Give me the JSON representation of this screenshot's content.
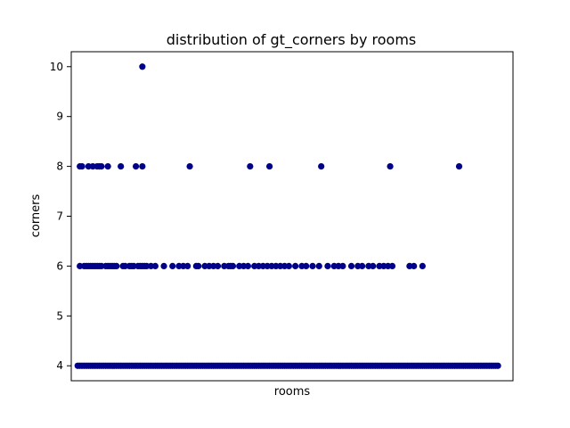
{
  "chart_data": {
    "type": "scatter",
    "title": "distribution of gt_corners by rooms",
    "xlabel": "rooms",
    "ylabel": "corners",
    "ylim": [
      3.7,
      10.3
    ],
    "yticks": [
      4,
      5,
      6,
      7,
      8,
      9,
      10
    ],
    "grid": false,
    "legend": "none",
    "marker_color": "#00008b",
    "points": {
      "y10": [
        15
      ],
      "y8": [
        0.5,
        1,
        2.5,
        3.5,
        4.5,
        5,
        5.5,
        7,
        10,
        13.5,
        15,
        26,
        40,
        44.5,
        56.5,
        72.5,
        88.5
      ],
      "y6": [
        0.5,
        1.5,
        2,
        2.5,
        3,
        3.5,
        4,
        4.5,
        5,
        5.5,
        6.5,
        7,
        7.5,
        8,
        8.5,
        9,
        10.5,
        11,
        12,
        12.5,
        13,
        14,
        14.5,
        15,
        15.5,
        16,
        17,
        18,
        20,
        22,
        23.5,
        24.5,
        25.5,
        27.5,
        28,
        29.5,
        30.5,
        31.5,
        32.5,
        34,
        35,
        35.5,
        36,
        37.5,
        38.5,
        39.5,
        41,
        42,
        43,
        44,
        45,
        46,
        47,
        48,
        49,
        50.5,
        52,
        53,
        54.5,
        56,
        58,
        59.5,
        60.5,
        61.5,
        63.5,
        65,
        66,
        67.5,
        68.5,
        70,
        71,
        72,
        73,
        77,
        78,
        80
      ],
      "y4": [
        0,
        0.5,
        1,
        1.5,
        2,
        2.5,
        3,
        3.5,
        4,
        4.5,
        5,
        5.5,
        6,
        6.5,
        7,
        7.5,
        8,
        8.5,
        9,
        9.5,
        10,
        10.5,
        11,
        11.5,
        12,
        12.5,
        13,
        13.5,
        14,
        14.5,
        15,
        15.5,
        16,
        16.5,
        17,
        17.5,
        18,
        18.5,
        19,
        19.5,
        20,
        20.5,
        21,
        21.5,
        22,
        22.5,
        23,
        23.5,
        24,
        24.5,
        25,
        25.5,
        26,
        26.5,
        27,
        27.5,
        28,
        28.5,
        29,
        29.5,
        30,
        30.5,
        31,
        31.5,
        32,
        32.5,
        33,
        33.5,
        34,
        34.5,
        35,
        35.5,
        36,
        36.5,
        37,
        37.5,
        38,
        38.5,
        39,
        39.5,
        40,
        40.5,
        41,
        41.5,
        42,
        42.5,
        43,
        43.5,
        44,
        44.5,
        45,
        45.5,
        46,
        46.5,
        47,
        47.5,
        48,
        48.5,
        49,
        49.5,
        50,
        50.5,
        51,
        51.5,
        52,
        52.5,
        53,
        53.5,
        54,
        54.5,
        55,
        55.5,
        56,
        56.5,
        57,
        57.5,
        58,
        58.5,
        59,
        59.5,
        60,
        60.5,
        61,
        61.5,
        62,
        62.5,
        63,
        63.5,
        64,
        64.5,
        65,
        65.5,
        66,
        66.5,
        67,
        67.5,
        68,
        68.5,
        69,
        69.5,
        70,
        70.5,
        71,
        71.5,
        72,
        72.5,
        73,
        73.5,
        74,
        74.5,
        75,
        75.5,
        76,
        76.5,
        77,
        77.5,
        78,
        78.5,
        79,
        79.5,
        80,
        80.5,
        81,
        81.5,
        82,
        82.5,
        83,
        83.5,
        84,
        84.5,
        85,
        85.5,
        86,
        86.5,
        87,
        87.5,
        88,
        88.5,
        89,
        89.5,
        90,
        90.5,
        91,
        91.5,
        92,
        92.5,
        93,
        93.5,
        94,
        94.5,
        95,
        95.5,
        96,
        96.5,
        97,
        97.5
      ]
    },
    "xlim": [
      -1.5,
      101
    ]
  }
}
